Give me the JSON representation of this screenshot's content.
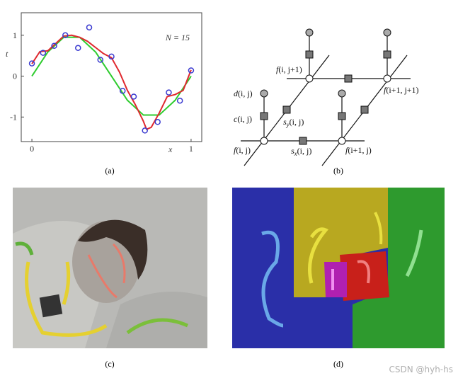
{
  "chart_data": {
    "type": "line",
    "xlabel": "x",
    "ylabel": "t",
    "annotation": "N = 15",
    "xlim": [
      -0.067,
      1.067
    ],
    "ylim": [
      -1.6,
      1.55
    ],
    "xticks": [
      0,
      1
    ],
    "yticks": [
      -1,
      0,
      1
    ],
    "grid": false,
    "series": [
      {
        "color": "#2ecc2e",
        "style": "line",
        "x": [
          0,
          0.1,
          0.2,
          0.3,
          0.4,
          0.5,
          0.6,
          0.7,
          0.8,
          0.9,
          1
        ],
        "values": [
          0,
          0.59,
          0.95,
          0.95,
          0.59,
          0,
          -0.59,
          -0.95,
          -0.95,
          -0.59,
          0
        ]
      },
      {
        "color": "#e0282e",
        "style": "line",
        "x": [
          0,
          0.05,
          0.1,
          0.15,
          0.2,
          0.25,
          0.3,
          0.35,
          0.4,
          0.45,
          0.5,
          0.55,
          0.6,
          0.65,
          0.7,
          0.72,
          0.75,
          0.8,
          0.85,
          0.9,
          0.95,
          1
        ],
        "values": [
          0.3,
          0.6,
          0.62,
          0.8,
          0.98,
          1.0,
          0.95,
          0.85,
          0.7,
          0.55,
          0.45,
          0.1,
          -0.35,
          -0.7,
          -1.1,
          -1.3,
          -1.25,
          -0.9,
          -0.5,
          -0.45,
          -0.35,
          0.15
        ]
      },
      {
        "color": "#3a3ad0",
        "style": "markers",
        "x": [
          0,
          0.07,
          0.14,
          0.21,
          0.29,
          0.36,
          0.43,
          0.5,
          0.57,
          0.64,
          0.71,
          0.79,
          0.86,
          0.93,
          1
        ],
        "values": [
          0.31,
          0.57,
          0.74,
          1.0,
          0.69,
          1.19,
          0.4,
          0.48,
          -0.36,
          -0.5,
          -1.33,
          -1.12,
          -0.4,
          -0.6,
          0.14
        ]
      }
    ]
  },
  "diagram": {
    "labels": [
      {
        "name": "f",
        "args": "(i, j+1)"
      },
      {
        "name": "d",
        "args": "(i, j)"
      },
      {
        "name": "c",
        "args": "(i, j)"
      },
      {
        "name": "s",
        "sub": "y",
        "args": "(i, j)"
      },
      {
        "name": "f",
        "args": "(i, j)"
      },
      {
        "name": "s",
        "sub": "x",
        "args": "(i, j)"
      },
      {
        "name": "f",
        "args": "(i+1, j)"
      },
      {
        "name": "f",
        "args": "(i+1, j+1)"
      }
    ]
  },
  "captions": [
    "(a)",
    "(b)",
    "(c)",
    "(d)"
  ],
  "watermark": "CSDN @hyh-hs"
}
